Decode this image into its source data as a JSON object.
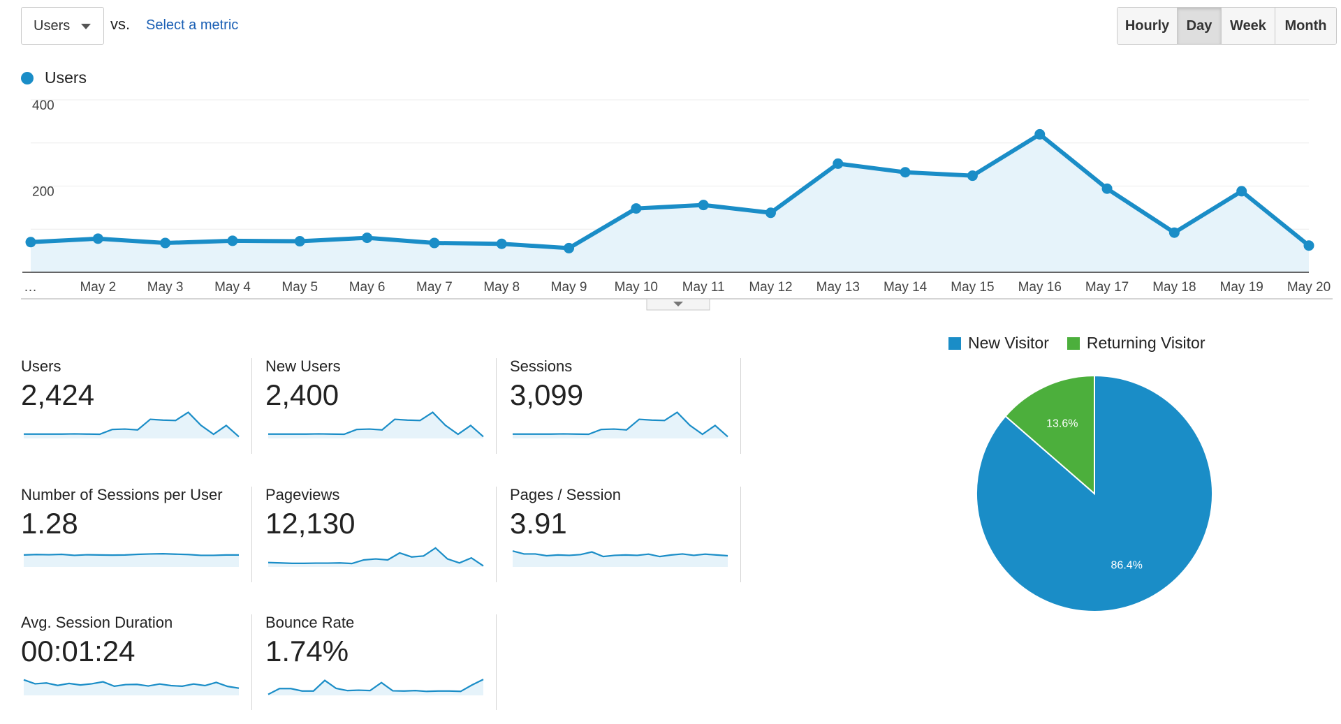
{
  "toolbar": {
    "metric_select": "Users",
    "vs_label": "vs.",
    "select_metric_link": "Select a metric",
    "periods": [
      {
        "label": "Hourly",
        "active": false
      },
      {
        "label": "Day",
        "active": true
      },
      {
        "label": "Week",
        "active": false
      },
      {
        "label": "Month",
        "active": false
      }
    ]
  },
  "chart_data": [
    {
      "type": "line",
      "legend": "Users",
      "color": "#1a8dc7",
      "fill": "#e6f3fa",
      "categories": [
        "…",
        "May 2",
        "May 3",
        "May 4",
        "May 5",
        "May 6",
        "May 7",
        "May 8",
        "May 9",
        "May 10",
        "May 11",
        "May 12",
        "May 13",
        "May 14",
        "May 15",
        "May 16",
        "May 17",
        "May 18",
        "May 19",
        "May 20"
      ],
      "values": [
        70,
        78,
        68,
        73,
        72,
        80,
        68,
        66,
        56,
        148,
        156,
        138,
        252,
        232,
        224,
        320,
        194,
        92,
        188,
        62
      ],
      "yticks": [
        200,
        400
      ],
      "ylim": [
        0,
        400
      ],
      "grid": true
    },
    {
      "type": "pie",
      "series": [
        {
          "name": "New Visitor",
          "value": 86.4,
          "label": "86.4%",
          "color": "#1a8dc7"
        },
        {
          "name": "Returning Visitor",
          "value": 13.6,
          "label": "13.6%",
          "color": "#4caf3c"
        }
      ],
      "legend_position": "top"
    }
  ],
  "metrics": [
    {
      "label": "Users",
      "value": "2,424",
      "spark": [
        22,
        22,
        22,
        22,
        23,
        22,
        21,
        45,
        47,
        43,
        96,
        92,
        90,
        131,
        66,
        21,
        65,
        9
      ]
    },
    {
      "label": "New Users",
      "value": "2,400",
      "spark": [
        22,
        22,
        22,
        22,
        23,
        22,
        21,
        45,
        47,
        43,
        96,
        92,
        90,
        131,
        66,
        21,
        65,
        9
      ]
    },
    {
      "label": "Sessions",
      "value": "3,099",
      "spark": [
        22,
        22,
        22,
        22,
        23,
        22,
        21,
        45,
        47,
        43,
        96,
        92,
        90,
        131,
        66,
        21,
        65,
        9
      ]
    },
    {
      "label": "Number of Sessions per User",
      "value": "1.28",
      "spark": [
        60,
        62,
        61,
        63,
        58,
        61,
        60,
        59,
        60,
        63,
        65,
        66,
        64,
        62,
        58,
        58,
        60,
        60
      ]
    },
    {
      "label": "Pageviews",
      "value": "12,130",
      "spark": [
        22,
        20,
        18,
        18,
        19,
        19,
        20,
        17,
        35,
        40,
        35,
        70,
        50,
        55,
        95,
        40,
        20,
        45,
        5
      ]
    },
    {
      "label": "Pages / Session",
      "value": "3.91",
      "spark": [
        80,
        65,
        65,
        56,
        60,
        58,
        62,
        75,
        52,
        58,
        60,
        58,
        64,
        52,
        60,
        65,
        58,
        64,
        60,
        56
      ]
    },
    {
      "label": "Avg. Session Duration",
      "value": "00:01:24",
      "spark": [
        78,
        58,
        62,
        50,
        60,
        52,
        58,
        68,
        46,
        54,
        55,
        47,
        57,
        49,
        46,
        57,
        49,
        65,
        45,
        36
      ]
    },
    {
      "label": "Bounce Rate",
      "value": "1.74%",
      "spark": [
        5,
        34,
        34,
        22,
        22,
        75,
        35,
        24,
        26,
        24,
        64,
        23,
        22,
        24,
        20,
        22,
        22,
        20,
        52,
        80
      ]
    }
  ]
}
